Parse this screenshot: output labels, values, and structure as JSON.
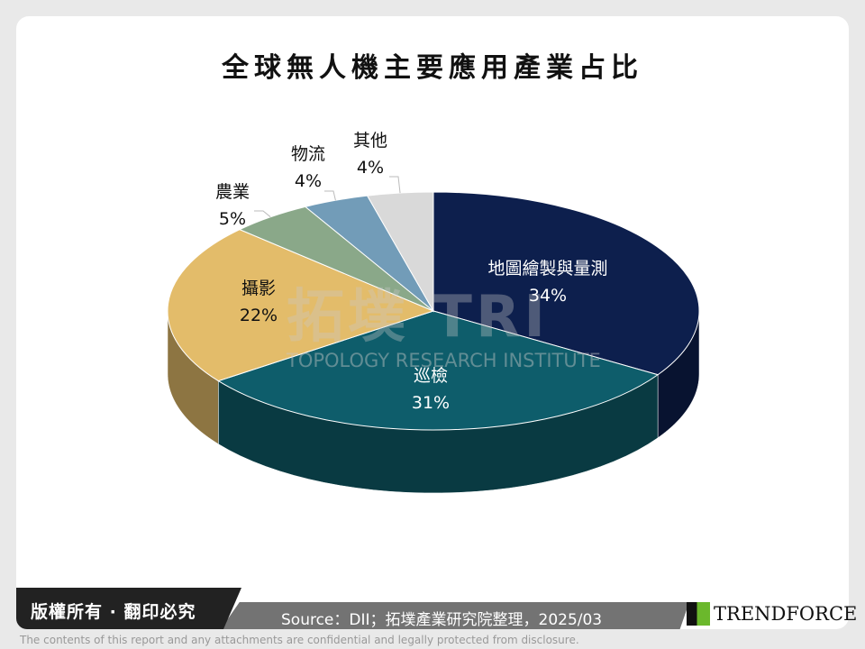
{
  "title": "全球無人機主要應用產業占比",
  "chart_data": {
    "type": "pie",
    "title": "全球無人機主要應用產業占比",
    "categories": [
      "地圖繪製與量測",
      "巡檢",
      "攝影",
      "農業",
      "物流",
      "其他"
    ],
    "values": [
      34,
      31,
      22,
      5,
      4,
      4
    ],
    "labels": [
      "34%",
      "31%",
      "22%",
      "5%",
      "4%",
      "4%"
    ],
    "colors": [
      "#0d1f4d",
      "#0e5d6b",
      "#e3bc6a",
      "#8aa889",
      "#729cb8",
      "#d9d9d9"
    ],
    "style": "3d",
    "start": "12 o'clock",
    "direction": "clockwise"
  },
  "watermark": {
    "cn": "拓墣",
    "logo": "TRI",
    "en": "TOPOLOGY RESEARCH INSTITUTE"
  },
  "footer": {
    "copyright": "版權所有 · 翻印必究",
    "source": "Source：DII；拓墣產業研究院整理，2025/03",
    "brand": "TRENDFORCE",
    "disclaimer": "The contents of this report and any attachments are confidential and legally protected from disclosure."
  }
}
